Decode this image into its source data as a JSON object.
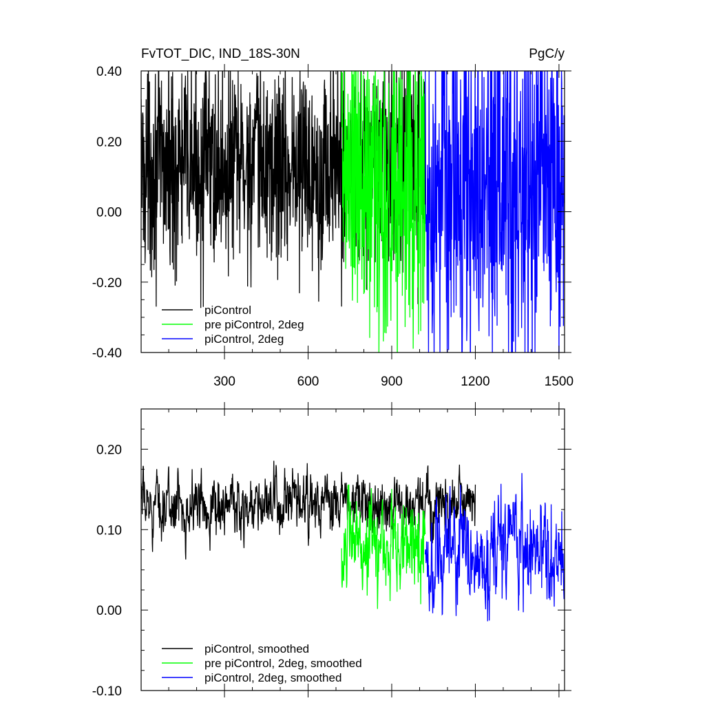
{
  "chart_data": [
    {
      "type": "line",
      "title": "FvTOT_DIC, IND_18S-30N",
      "units": "PgC/y",
      "xlim": [
        1,
        1520
      ],
      "ylim": [
        -0.4,
        0.4
      ],
      "x_ticks": [
        300,
        600,
        900,
        1200,
        1500
      ],
      "x_tick_labels": [
        "300",
        "600",
        "900",
        "1200",
        "1500"
      ],
      "y_ticks": [
        -0.4,
        -0.2,
        0.0,
        0.2,
        0.4
      ],
      "y_tick_labels": [
        "-0.40",
        "-0.20",
        "0.00",
        "0.20",
        "0.40"
      ],
      "grid": false,
      "legend_position": "bottom-left",
      "series": [
        {
          "name": "piControl",
          "color": "#000000",
          "x_range": [
            1,
            1020
          ],
          "mean": 0.13,
          "amplitude": 0.15
        },
        {
          "name": "pre piControl, 2deg",
          "color": "#00ff00",
          "x_range": [
            720,
            1020
          ],
          "mean": 0.07,
          "amplitude": 0.24
        },
        {
          "name": "piControl, 2deg",
          "color": "#0000ff",
          "x_range": [
            1020,
            1520
          ],
          "mean": 0.07,
          "amplitude": 0.25
        }
      ]
    },
    {
      "type": "line",
      "title": "",
      "xlim": [
        1,
        1520
      ],
      "ylim": [
        -0.1,
        0.25
      ],
      "x_ticks": [
        300,
        600,
        900,
        1200,
        1500
      ],
      "y_ticks": [
        -0.1,
        0.0,
        0.1,
        0.2
      ],
      "y_tick_labels": [
        "-0.10",
        "0.00",
        "0.10",
        "0.20"
      ],
      "grid": false,
      "legend_position": "bottom-left",
      "series": [
        {
          "name": "piControl, smoothed",
          "color": "#000000",
          "x_range": [
            1,
            1200
          ],
          "mean": 0.13,
          "amplitude": 0.035
        },
        {
          "name": "pre piControl, 2deg, smoothed",
          "color": "#00ff00",
          "x_range": [
            720,
            1020
          ],
          "mean": 0.08,
          "amplitude": 0.055
        },
        {
          "name": "piControl, 2deg, smoothed",
          "color": "#0000ff",
          "x_range": [
            1020,
            1520
          ],
          "mean": 0.07,
          "amplitude": 0.06
        }
      ]
    }
  ]
}
